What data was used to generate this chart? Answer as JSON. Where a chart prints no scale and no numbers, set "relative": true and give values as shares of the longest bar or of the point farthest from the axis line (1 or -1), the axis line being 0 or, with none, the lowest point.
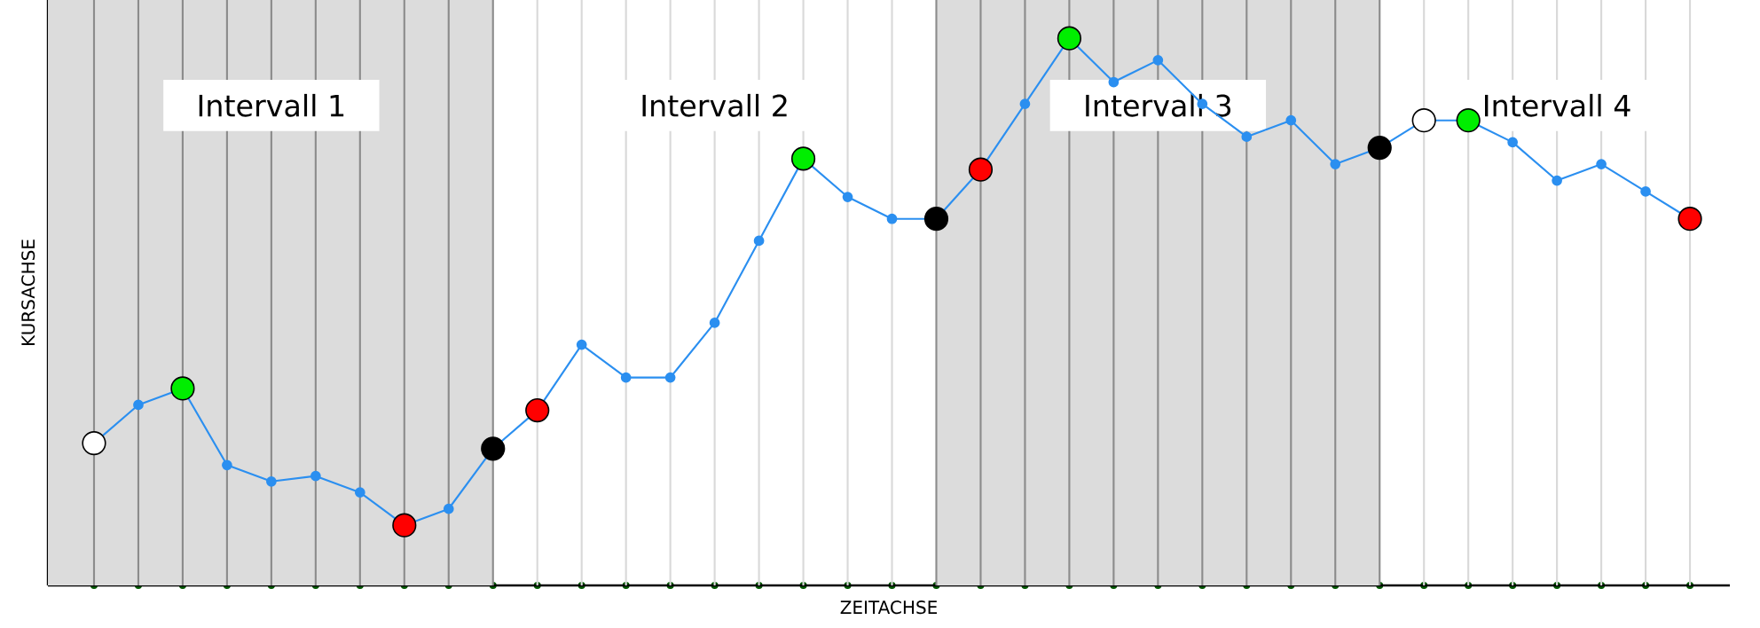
{
  "chart_data": {
    "type": "line",
    "relative": true,
    "xlabel": "ZEITACHSE",
    "ylabel": "KURSACHSE",
    "categories": [
      null,
      null,
      null,
      null,
      null,
      null,
      null,
      null,
      null,
      null,
      null,
      null,
      null,
      null,
      null,
      null,
      null,
      null,
      null,
      null,
      null,
      null,
      null,
      null,
      null,
      null,
      null,
      null,
      null,
      null,
      null,
      null,
      null,
      null,
      null,
      null,
      null
    ],
    "grid": "x",
    "series": [
      {
        "color": "#2b8ff0",
        "marker": "circle",
        "values": [
          0.26,
          0.33,
          0.36,
          0.22,
          0.19,
          0.2,
          0.17,
          0.11,
          0.14,
          0.25,
          0.32,
          0.44,
          0.38,
          0.38,
          0.48,
          0.63,
          0.78,
          0.71,
          0.67,
          0.67,
          0.76,
          0.88,
          1,
          0.92,
          0.96,
          0.88,
          0.82,
          0.85,
          0.77,
          0.8,
          0.85,
          0.85,
          0.81,
          0.74,
          0.77,
          0.72,
          0.67
        ],
        "colors": [
          "#ffffff",
          "#2b8ff0",
          "#00ee00",
          "#2b8ff0",
          "#2b8ff0",
          "#2b8ff0",
          "#2b8ff0",
          "#ff0000",
          "#2b8ff0",
          "#000000",
          "#ff0000",
          "#2b8ff0",
          "#2b8ff0",
          "#2b8ff0",
          "#2b8ff0",
          "#2b8ff0",
          "#00ee00",
          "#2b8ff0",
          "#2b8ff0",
          "#000000",
          "#ff0000",
          "#2b8ff0",
          "#00ee00",
          "#2b8ff0",
          "#2b8ff0",
          "#2b8ff0",
          "#2b8ff0",
          "#2b8ff0",
          "#2b8ff0",
          "#000000",
          "#ffffff",
          "#00ee00",
          "#2b8ff0",
          "#2b8ff0",
          "#2b8ff0",
          "#2b8ff0",
          "#ff0000"
        ]
      }
    ],
    "annotations": [
      "Intervall 1",
      "Intervall 2",
      "Intervall 3",
      "Intervall 4"
    ]
  }
}
